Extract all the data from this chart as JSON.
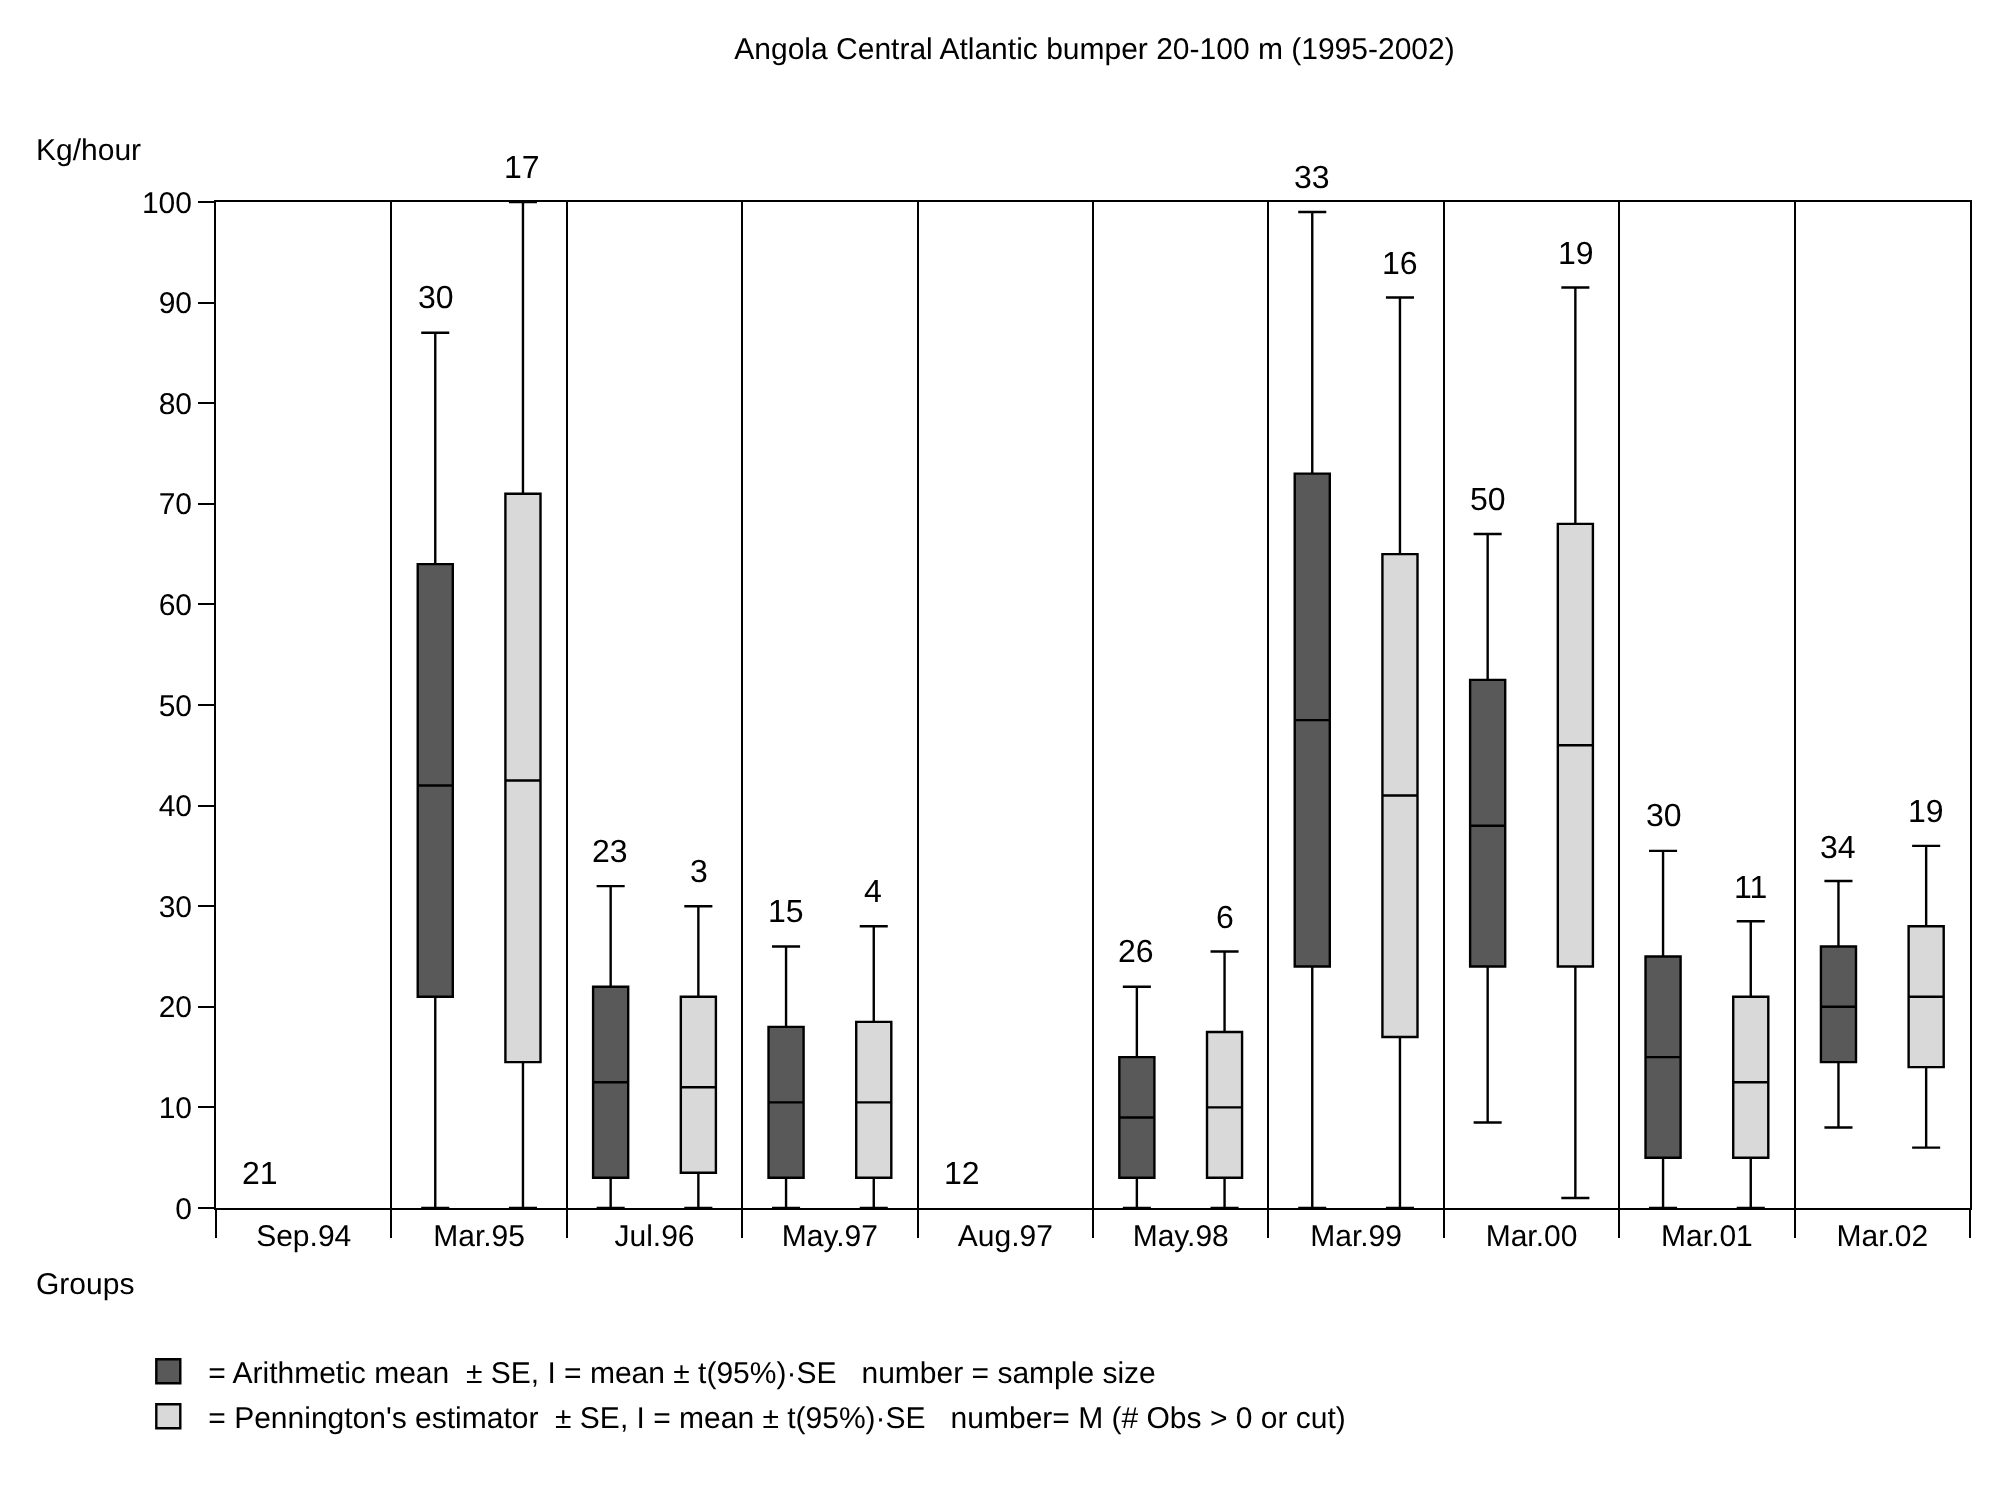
{
  "chart_data": {
    "type": "box",
    "title": "Angola Central Atlantic bumper 20-100 m (1995-2002)",
    "xlabel": "Groups",
    "ylabel": "Kg/hour",
    "categories": [
      "Sep.94",
      "Mar.95",
      "Jul.96",
      "May.97",
      "Aug.97",
      "May.98",
      "Mar.99",
      "Mar.00",
      "Mar.01",
      "Mar.02"
    ],
    "ylim": [
      0,
      100
    ],
    "yticks": [
      0,
      10,
      20,
      30,
      40,
      50,
      60,
      70,
      80,
      90,
      100
    ],
    "grid": "x",
    "legend": "bottom",
    "series": [
      {
        "name": "= Arithmetic mean  ± SE, I = mean ± t(95%)·SE   number = sample size",
        "color": "#595959",
        "value_labels": [
          "21",
          "30",
          "23",
          "15",
          "12",
          "26",
          "33",
          "50",
          "30",
          "34"
        ],
        "boxes": [
          null,
          {
            "low": 0,
            "q1": 21,
            "median": 42,
            "q3": 64,
            "high": 87
          },
          {
            "low": 0,
            "q1": 3,
            "median": 12.5,
            "q3": 22,
            "high": 32
          },
          {
            "low": 0,
            "q1": 3,
            "median": 10.5,
            "q3": 18,
            "high": 26
          },
          null,
          {
            "low": 0,
            "q1": 3,
            "median": 9,
            "q3": 15,
            "high": 22
          },
          {
            "low": 0,
            "q1": 24,
            "median": 48.5,
            "q3": 73,
            "high": 99
          },
          {
            "low": 8.5,
            "q1": 24,
            "median": 38,
            "q3": 52.5,
            "high": 67
          },
          {
            "low": 0,
            "q1": 5,
            "median": 15,
            "q3": 25,
            "high": 35.5
          },
          {
            "low": 8,
            "q1": 14.5,
            "median": 20,
            "q3": 26,
            "high": 32.5
          }
        ]
      },
      {
        "name": "= Pennington's estimator  ± SE, I = mean ± t(95%)·SE   number= M (# Obs > 0 or cut)",
        "color": "#d9d9d9",
        "value_labels": [
          null,
          "17",
          "3",
          "4",
          null,
          "6",
          "16",
          "19",
          "11",
          "19"
        ],
        "boxes": [
          null,
          {
            "low": 0,
            "q1": 14.5,
            "median": 42.5,
            "q3": 71,
            "high": 100
          },
          {
            "low": 0,
            "q1": 3.5,
            "median": 12,
            "q3": 21,
            "high": 30
          },
          {
            "low": 0,
            "q1": 3,
            "median": 10.5,
            "q3": 18.5,
            "high": 28
          },
          null,
          {
            "low": 0,
            "q1": 3,
            "median": 10,
            "q3": 17.5,
            "high": 25.5
          },
          {
            "low": 0,
            "q1": 17,
            "median": 41,
            "q3": 65,
            "high": 90.5
          },
          {
            "low": 1,
            "q1": 24,
            "median": 46,
            "q3": 68,
            "high": 91.5
          },
          {
            "low": 0,
            "q1": 5,
            "median": 12.5,
            "q3": 21,
            "high": 28.5
          },
          {
            "low": 6,
            "q1": 14,
            "median": 21,
            "q3": 28,
            "high": 36
          }
        ]
      }
    ]
  }
}
